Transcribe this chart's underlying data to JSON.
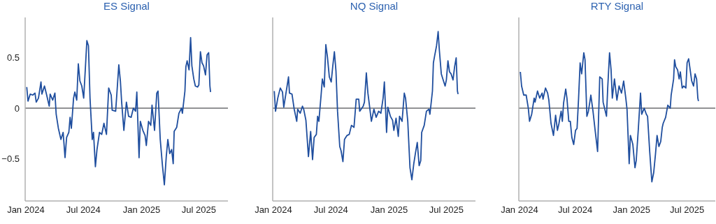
{
  "chart_data": [
    {
      "type": "line",
      "title": "ES Signal",
      "xlim": [
        "2023-12-30",
        "2025-10-01"
      ],
      "xticks": [
        {
          "value": "2024-01-01",
          "label": "Jan 2024"
        },
        {
          "value": "2024-07-01",
          "label": "Jul 2024"
        },
        {
          "value": "2025-01-01",
          "label": "Jan 2025"
        },
        {
          "value": "2025-07-01",
          "label": "Jul 2025"
        }
      ],
      "ylim": [
        -0.92,
        0.9
      ],
      "yticks": [
        {
          "value": -0.5,
          "label": "−0.5"
        },
        0,
        0.5
      ],
      "grid": false,
      "legend": false,
      "marker": "none",
      "line_style": "solid",
      "ref_lines": [
        {
          "axis": "y",
          "value": 0,
          "color": "#6d6e71"
        }
      ],
      "x": [
        "2024-01-04",
        "2024-01-08",
        "2024-01-15",
        "2024-01-23",
        "2024-01-30",
        "2024-02-03",
        "2024-02-10",
        "2024-02-18",
        "2024-02-21",
        "2024-02-29",
        "2024-03-07",
        "2024-03-15",
        "2024-03-18",
        "2024-03-26",
        "2024-04-02",
        "2024-04-06",
        "2024-04-13",
        "2024-04-21",
        "2024-04-28",
        "2024-05-04",
        "2024-05-09",
        "2024-05-16",
        "2024-05-20",
        "2024-05-24",
        "2024-05-31",
        "2024-06-04",
        "2024-06-10",
        "2024-06-15",
        "2024-06-20",
        "2024-06-26",
        "2024-07-02",
        "2024-07-07",
        "2024-07-12",
        "2024-07-17",
        "2024-07-22",
        "2024-07-29",
        "2024-08-02",
        "2024-08-08",
        "2024-08-13",
        "2024-08-21",
        "2024-08-28",
        "2024-09-04",
        "2024-09-12",
        "2024-09-19",
        "2024-09-27",
        "2024-09-30",
        "2024-10-11",
        "2024-10-15",
        "2024-10-21",
        "2024-10-26",
        "2024-10-30",
        "2024-11-06",
        "2024-11-14",
        "2024-11-21",
        "2024-11-29",
        "2024-12-06",
        "2024-12-13",
        "2024-12-17",
        "2024-12-24",
        "2024-12-28",
        "2025-01-05",
        "2025-01-12",
        "2025-01-16",
        "2025-01-23",
        "2025-01-30",
        "2025-02-03",
        "2025-02-11",
        "2025-02-18",
        "2025-02-22",
        "2025-03-01",
        "2025-03-08",
        "2025-03-14",
        "2025-03-20",
        "2025-03-25",
        "2025-03-31",
        "2025-04-06",
        "2025-04-11",
        "2025-04-14",
        "2025-04-22",
        "2025-04-29",
        "2025-05-07",
        "2025-05-10",
        "2025-05-18",
        "2025-05-21",
        "2025-05-25",
        "2025-05-31",
        "2025-06-05",
        "2025-06-09",
        "2025-06-15",
        "2025-06-20",
        "2025-06-27",
        "2025-07-01",
        "2025-07-06",
        "2025-07-11",
        "2025-07-16",
        "2025-07-22",
        "2025-07-27",
        "2025-08-01",
        "2025-08-05",
        "2025-08-07"
      ],
      "series": [
        {
          "color": "#1f4e9e",
          "values": [
            0.21,
            0.07,
            0.14,
            0.13,
            0.15,
            0.06,
            0.1,
            0.26,
            0.14,
            0.22,
            0.13,
            0.02,
            0.14,
            0.08,
            0.15,
            -0.06,
            -0.2,
            -0.31,
            -0.24,
            -0.49,
            -0.29,
            -0.24,
            -0.09,
            -0.2,
            0.1,
            0.16,
            0.08,
            0.44,
            0.27,
            0.22,
            0.1,
            0.38,
            0.67,
            0.62,
            0.1,
            -0.31,
            -0.24,
            -0.58,
            -0.41,
            -0.24,
            -0.26,
            -0.15,
            -0.26,
            0.2,
            0.13,
            -0.02,
            -0.03,
            0.15,
            0.43,
            0.27,
            0.06,
            -0.22,
            0.06,
            -0.08,
            -0.09,
            0.0,
            -0.03,
            0.16,
            -0.49,
            -0.13,
            -0.22,
            -0.27,
            -0.37,
            -0.13,
            -0.17,
            0.03,
            -0.22,
            0.15,
            0.17,
            -0.31,
            -0.57,
            -0.76,
            -0.48,
            -0.31,
            -0.45,
            -0.41,
            -0.55,
            -0.23,
            -0.19,
            -0.05,
            0.0,
            -0.05,
            0.17,
            0.41,
            0.47,
            0.38,
            0.7,
            0.42,
            0.29,
            0.22,
            0.21,
            0.23,
            0.56,
            0.45,
            0.42,
            0.33,
            0.53,
            0.55,
            0.22,
            0.16
          ]
        }
      ]
    },
    {
      "type": "line",
      "title": "NQ Signal",
      "tick_labels": "x",
      "xlim": [
        "2023-12-30",
        "2025-10-01"
      ],
      "xticks": [
        {
          "value": "2024-01-01",
          "label": "Jan 2024"
        },
        {
          "value": "2024-07-01",
          "label": "Jul 2024"
        },
        {
          "value": "2025-01-01",
          "label": "Jan 2025"
        },
        {
          "value": "2025-07-01",
          "label": "Jul 2025"
        }
      ],
      "ylim": [
        -0.92,
        0.9
      ],
      "grid": false,
      "legend": false,
      "marker": "none",
      "line_style": "solid",
      "ref_lines": [
        {
          "axis": "y",
          "value": 0,
          "color": "#6d6e71"
        }
      ],
      "x": [
        "2024-01-04",
        "2024-01-08",
        "2024-01-15",
        "2024-01-23",
        "2024-01-30",
        "2024-02-03",
        "2024-02-10",
        "2024-02-18",
        "2024-02-21",
        "2024-02-29",
        "2024-03-07",
        "2024-03-15",
        "2024-03-18",
        "2024-03-26",
        "2024-04-02",
        "2024-04-06",
        "2024-04-13",
        "2024-04-21",
        "2024-04-28",
        "2024-05-04",
        "2024-05-09",
        "2024-05-16",
        "2024-05-20",
        "2024-05-24",
        "2024-05-31",
        "2024-06-04",
        "2024-06-10",
        "2024-06-15",
        "2024-06-20",
        "2024-06-26",
        "2024-07-02",
        "2024-07-07",
        "2024-07-12",
        "2024-07-17",
        "2024-07-22",
        "2024-07-29",
        "2024-08-02",
        "2024-08-08",
        "2024-08-13",
        "2024-08-21",
        "2024-08-28",
        "2024-09-04",
        "2024-09-12",
        "2024-09-19",
        "2024-09-27",
        "2024-09-30",
        "2024-10-11",
        "2024-10-15",
        "2024-10-21",
        "2024-10-26",
        "2024-10-30",
        "2024-11-06",
        "2024-11-14",
        "2024-11-21",
        "2024-11-29",
        "2024-12-06",
        "2024-12-13",
        "2024-12-17",
        "2024-12-24",
        "2024-12-28",
        "2025-01-05",
        "2025-01-12",
        "2025-01-16",
        "2025-01-23",
        "2025-01-30",
        "2025-02-03",
        "2025-02-11",
        "2025-02-18",
        "2025-02-22",
        "2025-03-01",
        "2025-03-08",
        "2025-03-14",
        "2025-03-20",
        "2025-03-25",
        "2025-03-31",
        "2025-04-06",
        "2025-04-11",
        "2025-04-14",
        "2025-04-22",
        "2025-04-29",
        "2025-05-07",
        "2025-05-10",
        "2025-05-18",
        "2025-05-21",
        "2025-05-25",
        "2025-05-31",
        "2025-06-05",
        "2025-06-09",
        "2025-06-15",
        "2025-06-20",
        "2025-06-27",
        "2025-07-01",
        "2025-07-06",
        "2025-07-11",
        "2025-07-16",
        "2025-07-22",
        "2025-07-27",
        "2025-08-01",
        "2025-08-05",
        "2025-08-07"
      ],
      "series": [
        {
          "color": "#1f4e9e",
          "values": [
            0.17,
            -0.03,
            0.1,
            0.2,
            0.16,
            0.01,
            0.15,
            0.31,
            0.15,
            0.14,
            -0.01,
            -0.13,
            -0.01,
            -0.05,
            0.02,
            -0.01,
            -0.12,
            -0.48,
            -0.23,
            -0.51,
            -0.29,
            -0.26,
            -0.08,
            -0.13,
            0.13,
            0.29,
            0.21,
            0.63,
            0.51,
            0.31,
            0.26,
            0.42,
            0.56,
            0.37,
            -0.03,
            -0.38,
            -0.42,
            -0.53,
            -0.31,
            -0.27,
            -0.26,
            -0.17,
            -0.19,
            0.09,
            0.09,
            -0.03,
            0.02,
            0.06,
            0.35,
            0.15,
            0.05,
            -0.13,
            -0.01,
            -0.09,
            -0.03,
            -0.05,
            0.1,
            0.26,
            -0.24,
            0.01,
            -0.08,
            -0.12,
            -0.22,
            -0.1,
            -0.28,
            -0.08,
            -0.13,
            0.15,
            0.1,
            -0.13,
            -0.59,
            -0.71,
            -0.55,
            -0.45,
            -0.34,
            -0.57,
            -0.52,
            -0.24,
            -0.17,
            -0.03,
            -0.01,
            -0.06,
            0.17,
            0.45,
            0.52,
            0.62,
            0.76,
            0.57,
            0.34,
            0.29,
            0.22,
            0.28,
            0.47,
            0.36,
            0.34,
            0.28,
            0.41,
            0.5,
            0.17,
            0.14
          ]
        }
      ]
    },
    {
      "type": "line",
      "title": "RTY Signal",
      "tick_labels": "x",
      "xlim": [
        "2023-12-30",
        "2025-10-01"
      ],
      "xticks": [
        {
          "value": "2024-01-01",
          "label": "Jan 2024"
        },
        {
          "value": "2024-07-01",
          "label": "Jul 2024"
        },
        {
          "value": "2025-01-01",
          "label": "Jan 2025"
        },
        {
          "value": "2025-07-01",
          "label": "Jul 2025"
        }
      ],
      "ylim": [
        -0.92,
        0.9
      ],
      "grid": false,
      "legend": false,
      "marker": "none",
      "line_style": "solid",
      "ref_lines": [
        {
          "axis": "y",
          "value": 0,
          "color": "#6d6e71"
        }
      ],
      "x": [
        "2024-01-04",
        "2024-01-08",
        "2024-01-15",
        "2024-01-23",
        "2024-01-30",
        "2024-02-03",
        "2024-02-10",
        "2024-02-18",
        "2024-02-21",
        "2024-02-29",
        "2024-03-07",
        "2024-03-15",
        "2024-03-18",
        "2024-03-26",
        "2024-04-02",
        "2024-04-06",
        "2024-04-13",
        "2024-04-21",
        "2024-04-28",
        "2024-05-04",
        "2024-05-09",
        "2024-05-16",
        "2024-05-20",
        "2024-05-24",
        "2024-05-31",
        "2024-06-04",
        "2024-06-10",
        "2024-06-15",
        "2024-06-20",
        "2024-06-26",
        "2024-07-02",
        "2024-07-07",
        "2024-07-12",
        "2024-07-17",
        "2024-07-22",
        "2024-07-29",
        "2024-08-02",
        "2024-08-08",
        "2024-08-13",
        "2024-08-21",
        "2024-08-28",
        "2024-09-04",
        "2024-09-12",
        "2024-09-19",
        "2024-09-27",
        "2024-09-30",
        "2024-10-11",
        "2024-10-15",
        "2024-10-21",
        "2024-10-26",
        "2024-10-30",
        "2024-11-06",
        "2024-11-14",
        "2024-11-21",
        "2024-11-29",
        "2024-12-06",
        "2024-12-13",
        "2024-12-17",
        "2024-12-24",
        "2024-12-28",
        "2025-01-05",
        "2025-01-12",
        "2025-01-16",
        "2025-01-23",
        "2025-01-30",
        "2025-02-03",
        "2025-02-11",
        "2025-02-18",
        "2025-02-22",
        "2025-03-01",
        "2025-03-08",
        "2025-03-14",
        "2025-03-20",
        "2025-03-25",
        "2025-03-31",
        "2025-04-06",
        "2025-04-11",
        "2025-04-14",
        "2025-04-22",
        "2025-04-29",
        "2025-05-07",
        "2025-05-10",
        "2025-05-18",
        "2025-05-21",
        "2025-05-25",
        "2025-05-31",
        "2025-06-05",
        "2025-06-09",
        "2025-06-15",
        "2025-06-20",
        "2025-06-27",
        "2025-07-01",
        "2025-07-06",
        "2025-07-11",
        "2025-07-16",
        "2025-07-22",
        "2025-07-27",
        "2025-08-01",
        "2025-08-05",
        "2025-08-07"
      ],
      "series": [
        {
          "color": "#1f4e9e",
          "values": [
            0.36,
            0.22,
            0.13,
            0.13,
            0.0,
            -0.13,
            -0.06,
            0.1,
            0.06,
            0.17,
            0.1,
            0.15,
            0.09,
            0.2,
            0.15,
            0.08,
            -0.15,
            -0.27,
            -0.07,
            -0.22,
            -0.15,
            -0.03,
            -0.13,
            0.05,
            0.19,
            0.1,
            -0.13,
            -0.13,
            -0.29,
            -0.36,
            -0.22,
            -0.2,
            0.1,
            0.45,
            0.34,
            0.55,
            0.48,
            -0.08,
            -0.03,
            0.13,
            -0.03,
            -0.22,
            -0.43,
            0.31,
            0.29,
            0.06,
            -0.08,
            0.2,
            0.55,
            0.38,
            0.1,
            0.29,
            0.08,
            0.22,
            0.15,
            0.27,
            0.1,
            -0.01,
            -0.55,
            -0.27,
            -0.36,
            -0.59,
            -0.52,
            -0.2,
            0.15,
            -0.06,
            0.0,
            -0.06,
            -0.08,
            -0.43,
            -0.73,
            -0.64,
            -0.45,
            -0.27,
            -0.38,
            -0.33,
            -0.19,
            -0.15,
            -0.09,
            0.03,
            0.0,
            0.13,
            0.29,
            0.48,
            0.41,
            0.38,
            0.29,
            0.36,
            0.2,
            0.22,
            0.2,
            0.45,
            0.49,
            0.38,
            0.27,
            0.22,
            0.34,
            0.29,
            0.1,
            0.07
          ]
        }
      ]
    }
  ]
}
